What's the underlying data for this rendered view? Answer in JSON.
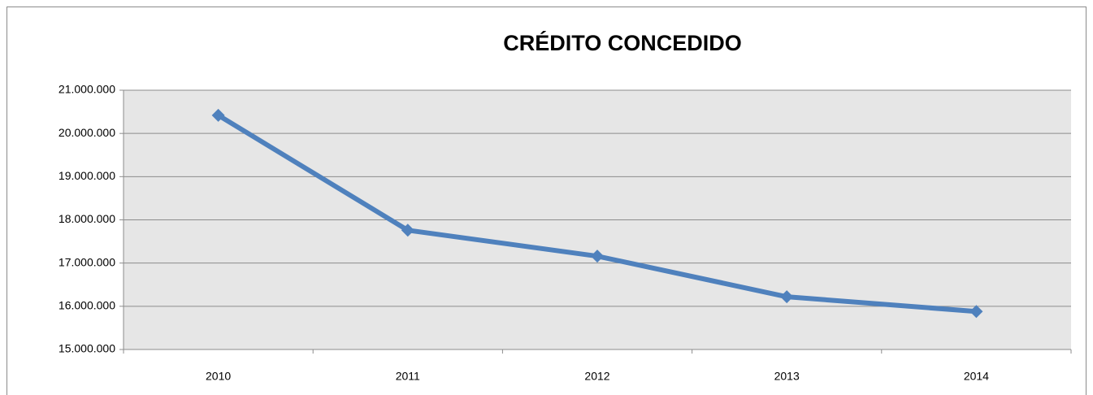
{
  "chart_data": {
    "type": "line",
    "title": "CRÉDITO CONCEDIDO",
    "categories": [
      "2010",
      "2011",
      "2012",
      "2013",
      "2014"
    ],
    "series": [
      {
        "name": "Crédito concedido",
        "color": "#4f81bd",
        "values": [
          20420000,
          17760000,
          17160000,
          16220000,
          15880000
        ]
      }
    ],
    "ylim": [
      15000000,
      21000000
    ],
    "yticks": [
      {
        "value": 15000000,
        "label": "15.000.000"
      },
      {
        "value": 16000000,
        "label": "16.000.000"
      },
      {
        "value": 17000000,
        "label": "17.000.000"
      },
      {
        "value": 18000000,
        "label": "18.000.000"
      },
      {
        "value": 19000000,
        "label": "19.000.000"
      },
      {
        "value": 20000000,
        "label": "20.000.000"
      },
      {
        "value": 21000000,
        "label": "21.000.000"
      }
    ],
    "grid": true,
    "plot_background": "#e6e6e6"
  }
}
